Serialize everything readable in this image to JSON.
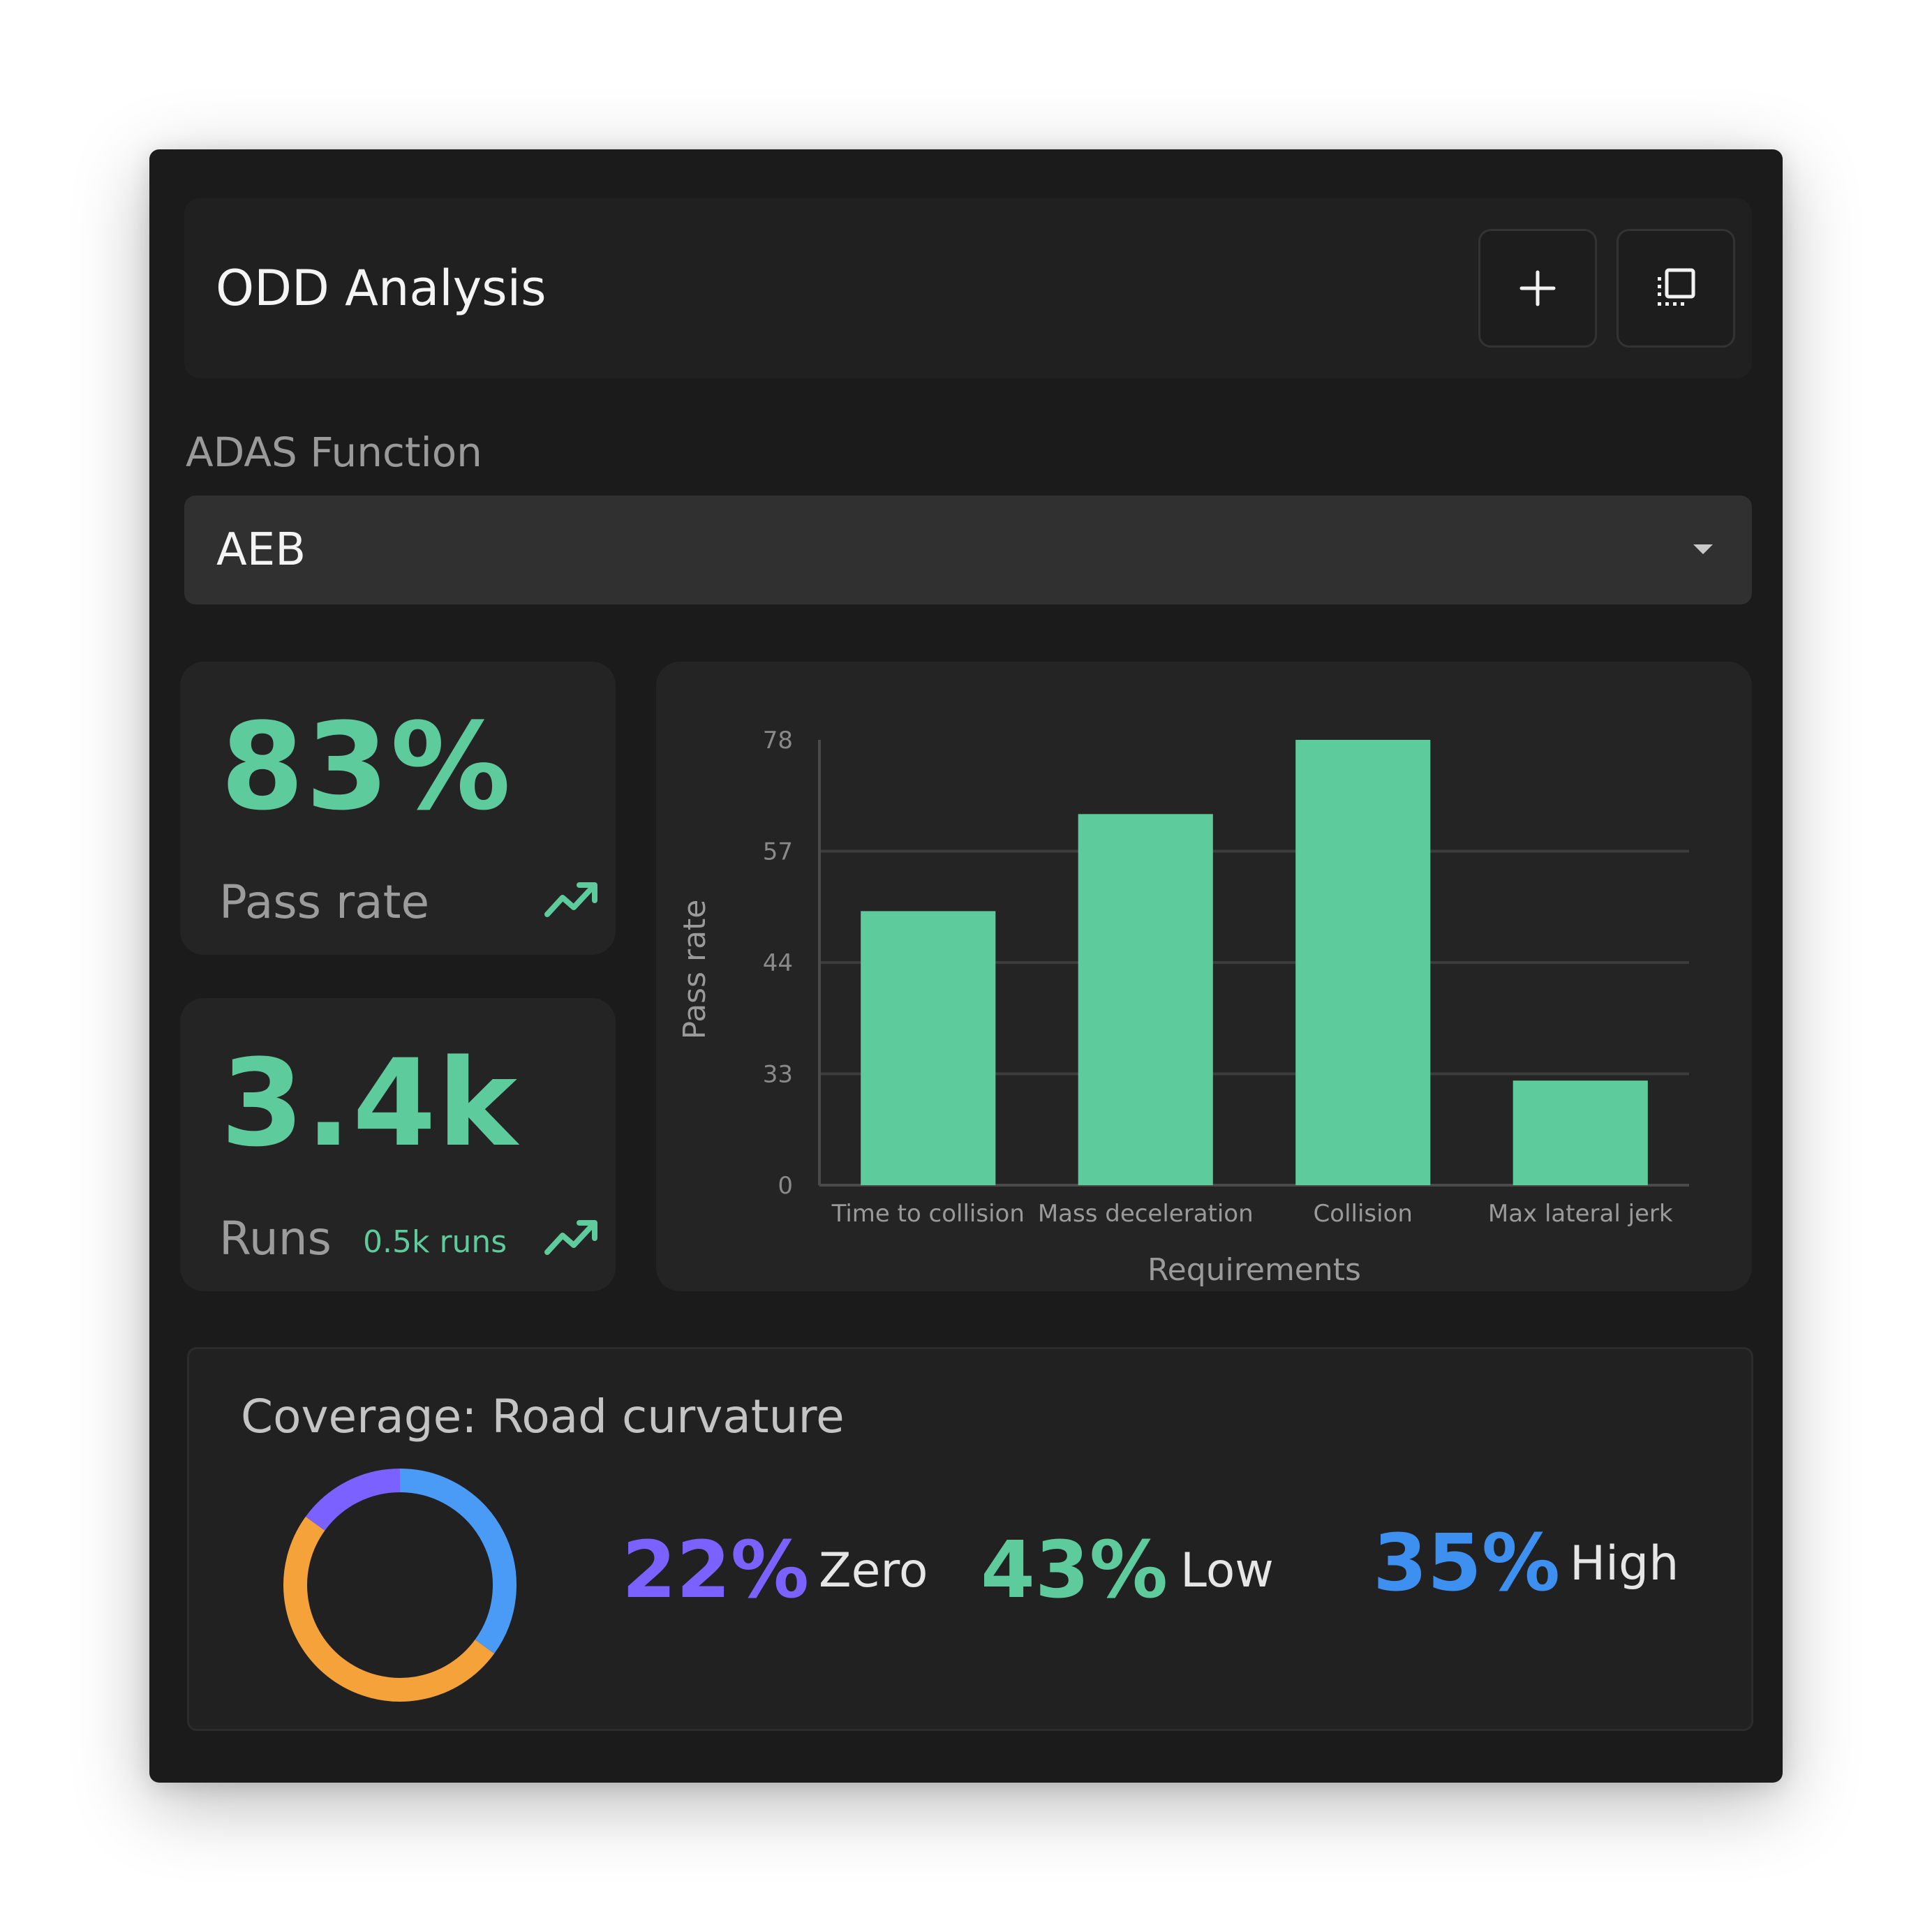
{
  "header": {
    "title": "ODD Analysis",
    "add_icon": "plus-icon",
    "copy_icon": "copy-icon"
  },
  "adas": {
    "label": "ADAS Function",
    "selected": "AEB",
    "caret_icon": "caret-down-icon"
  },
  "metrics": {
    "pass_rate": {
      "value": "83%",
      "label": "Pass rate",
      "trend_icon": "trending-up-icon"
    },
    "runs": {
      "value": "3.4k",
      "label": "Runs",
      "delta": "0.5k runs",
      "trend_icon": "trending-up-icon"
    }
  },
  "chart_data": {
    "type": "bar",
    "categories": [
      "Time to collision",
      "Mass deceleration",
      "Collision",
      "Max lateral jerk"
    ],
    "values": [
      50,
      64,
      78,
      31
    ],
    "ylabel": "Pass rate",
    "xlabel": "Requirements",
    "yticks": [
      0,
      33,
      44,
      57,
      78
    ],
    "ylim": [
      0,
      78
    ],
    "grid": true,
    "bar_color": "#5ecb9c"
  },
  "coverage": {
    "title": "Coverage: Road curvature",
    "segments": [
      {
        "pct": "22%",
        "value": 22,
        "label": "Zero",
        "color": "#7b61ff"
      },
      {
        "pct": "43%",
        "value": 43,
        "label": "Low",
        "color": "#5ecb9c"
      },
      {
        "pct": "35%",
        "value": 35,
        "label": "High",
        "color": "#3d8ff0"
      }
    ],
    "donut_segments": [
      {
        "value": 35,
        "color": "#4a9bf5"
      },
      {
        "value": 50,
        "color": "#f5a23a"
      },
      {
        "value": 15,
        "color": "#7b61ff"
      }
    ]
  }
}
